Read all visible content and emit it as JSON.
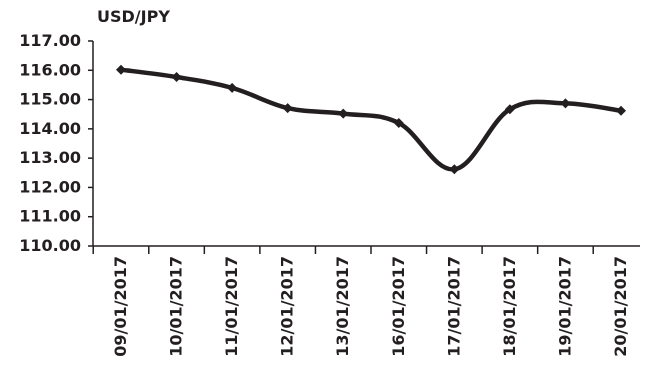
{
  "chart_data": {
    "type": "line",
    "title": "USD/JPY",
    "xlabel": "",
    "ylabel": "",
    "categories": [
      "09/01/2017",
      "10/01/2017",
      "11/01/2017",
      "12/01/2017",
      "13/01/2017",
      "16/01/2017",
      "17/01/2017",
      "18/01/2017",
      "19/01/2017",
      "20/01/2017"
    ],
    "series": [
      {
        "values": [
          116.02,
          115.77,
          115.4,
          114.71,
          114.52,
          114.2,
          112.62,
          114.67,
          114.87,
          114.62
        ]
      }
    ],
    "ylim": [
      110.0,
      117.0
    ],
    "yticks": [
      "110.00",
      "111.00",
      "112.00",
      "113.00",
      "114.00",
      "115.00",
      "116.00",
      "117.00"
    ],
    "grid": false,
    "legend": "none",
    "line_color": "#231f20",
    "marker": "diamond",
    "smooth": true
  }
}
